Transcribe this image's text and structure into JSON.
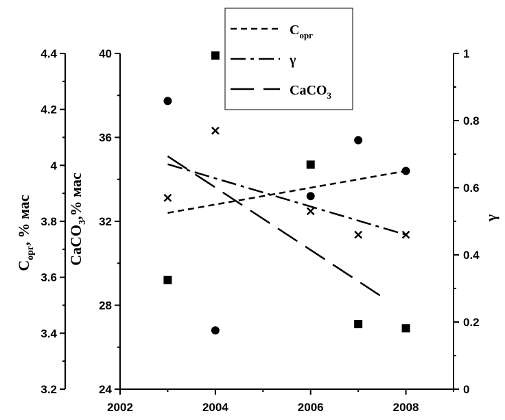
{
  "chart_data": {
    "type": "scatter",
    "x_axis": {
      "min": 2002,
      "max": 2009,
      "ticks": [
        2002,
        2004,
        2006,
        2008
      ],
      "labels": [
        "2002",
        "2004",
        "2006",
        "2008"
      ]
    },
    "y_axis_outer": {
      "title_main": "C",
      "title_sub": "орг",
      "title_tail": ", % мас",
      "min": 3.2,
      "max": 4.4,
      "ticks": [
        3.2,
        3.4,
        3.6,
        3.8,
        4.0,
        4.2,
        4.4
      ],
      "labels": [
        "3.2",
        "3.4",
        "3.6",
        "3.8",
        "4",
        "4.2",
        "4.4"
      ]
    },
    "y_axis_inner": {
      "title_main": "CaCO",
      "title_sub": "3",
      "title_tail": ",% мас",
      "min": 24,
      "max": 40,
      "ticks": [
        24,
        28,
        32,
        36,
        40
      ],
      "labels": [
        "24",
        "28",
        "32",
        "36",
        "40"
      ]
    },
    "y_axis_right": {
      "title": "γ",
      "min": 0,
      "max": 1,
      "ticks": [
        0,
        0.2,
        0.4,
        0.6,
        0.8,
        1
      ],
      "labels": [
        "0",
        "0.2",
        "0.4",
        "0.6",
        "0.8",
        "1"
      ]
    },
    "series": [
      {
        "axis": "outer",
        "marker": "circle",
        "x": [
          2003,
          2004,
          2006,
          2007,
          2008
        ],
        "y": [
          4.23,
          3.41,
          3.89,
          4.09,
          3.98
        ]
      },
      {
        "axis": "inner",
        "marker": "square",
        "x": [
          2003,
          2004,
          2006,
          2007,
          2008
        ],
        "y": [
          29.2,
          39.9,
          34.7,
          27.1,
          26.9
        ]
      },
      {
        "axis": "right",
        "marker": "cross",
        "x": [
          2003,
          2004,
          2006,
          2007,
          2008
        ],
        "y": [
          0.57,
          0.77,
          0.53,
          0.46,
          0.46
        ]
      }
    ],
    "trendlines": [
      {
        "axis": "outer",
        "style": "dashed",
        "x": [
          2003,
          2008
        ],
        "y": [
          3.83,
          3.98
        ]
      },
      {
        "axis": "right",
        "style": "dash-dot",
        "x": [
          2003,
          2008
        ],
        "y": [
          0.67,
          0.46
        ]
      },
      {
        "axis": "inner",
        "style": "long-dash",
        "x": [
          2003,
          2007.5
        ],
        "y": [
          35.1,
          28.4
        ]
      }
    ],
    "legend": {
      "placement": "top-center",
      "entries": [
        {
          "style": "dashed",
          "main": "C",
          "sub": "орг"
        },
        {
          "style": "dash-dot",
          "main": "γ",
          "sub": ""
        },
        {
          "style": "long-dash",
          "main": "CaCO",
          "sub": "3"
        }
      ]
    }
  }
}
